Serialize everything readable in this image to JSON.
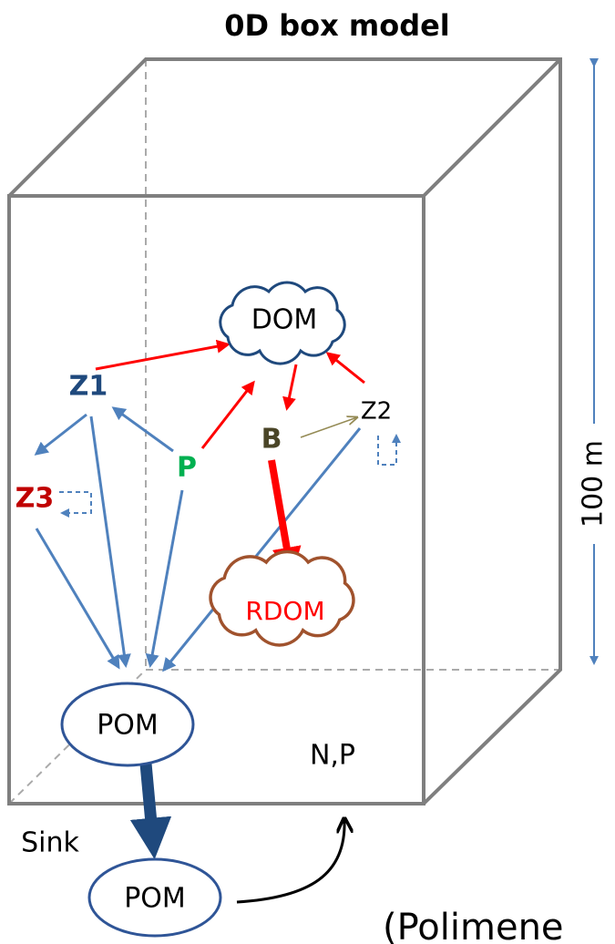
{
  "title": "0D box model",
  "nodes": [
    {
      "label": "DOM"
    },
    {
      "label": "Z1"
    },
    {
      "label": "Z2"
    },
    {
      "label": "Z3"
    },
    {
      "label": "P"
    },
    {
      "label": "B"
    },
    {
      "label": "RDOM"
    },
    {
      "label": "POM"
    },
    {
      "label": "POM"
    },
    {
      "label": "N,P"
    }
  ],
  "sink_label": "Sink",
  "scale_label": "100 m",
  "citation": "(Polimene"
}
